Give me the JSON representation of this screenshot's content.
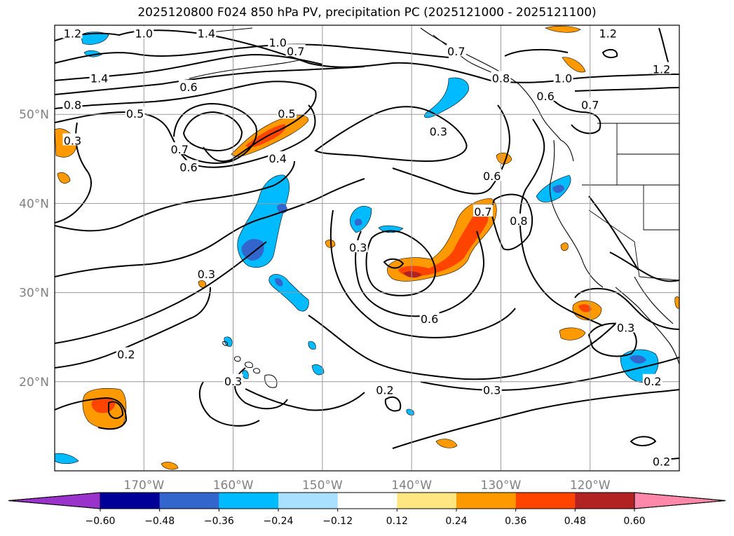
{
  "title": "2025120800 F024 850 hPa PV, precipitation PC (2025121000 - 2025121100)",
  "map": {
    "projection": "PlateCarree",
    "lon_range": [
      -180,
      -110
    ],
    "lat_range": [
      10,
      60
    ],
    "gridlines": true,
    "lon_ticks": [
      {
        "value": -170,
        "label": "170°W"
      },
      {
        "value": -160,
        "label": "160°W"
      },
      {
        "value": -150,
        "label": "150°W"
      },
      {
        "value": -140,
        "label": "140°W"
      },
      {
        "value": -130,
        "label": "130°W"
      },
      {
        "value": -120,
        "label": "120°W"
      }
    ],
    "lat_ticks": [
      {
        "value": 50,
        "label": "50°N"
      },
      {
        "value": 40,
        "label": "40°N"
      },
      {
        "value": 30,
        "label": "30°N"
      },
      {
        "value": 20,
        "label": "20°N"
      }
    ],
    "tick_color": "#808080"
  },
  "contour_labels": [
    {
      "text": "1.2",
      "lon": -178,
      "lat": 59
    },
    {
      "text": "1.0",
      "lon": -170,
      "lat": 59
    },
    {
      "text": "1.4",
      "lon": -163,
      "lat": 59
    },
    {
      "text": "1.0",
      "lon": -155,
      "lat": 58
    },
    {
      "text": "0.7",
      "lon": -153,
      "lat": 57
    },
    {
      "text": "1.4",
      "lon": -175,
      "lat": 54
    },
    {
      "text": "0.6",
      "lon": -165,
      "lat": 53
    },
    {
      "text": "0.8",
      "lon": -178,
      "lat": 51
    },
    {
      "text": "0.5",
      "lon": -171,
      "lat": 50
    },
    {
      "text": "0.5",
      "lon": -154,
      "lat": 50
    },
    {
      "text": "0.3",
      "lon": -178,
      "lat": 47
    },
    {
      "text": "0.7",
      "lon": -166,
      "lat": 46
    },
    {
      "text": "0.6",
      "lon": -165,
      "lat": 44
    },
    {
      "text": "0.4",
      "lon": -155,
      "lat": 45
    },
    {
      "text": "0.7",
      "lon": -135,
      "lat": 57
    },
    {
      "text": "0.3",
      "lon": -137,
      "lat": 48
    },
    {
      "text": "0.8",
      "lon": -130,
      "lat": 54
    },
    {
      "text": "0.6",
      "lon": -125,
      "lat": 52
    },
    {
      "text": "1.2",
      "lon": -118,
      "lat": 59
    },
    {
      "text": "1.0",
      "lon": -123,
      "lat": 54
    },
    {
      "text": "1.2",
      "lon": -112,
      "lat": 55
    },
    {
      "text": "0.7",
      "lon": -120,
      "lat": 51
    },
    {
      "text": "0.6",
      "lon": -131,
      "lat": 43
    },
    {
      "text": "0.7",
      "lon": -132,
      "lat": 39
    },
    {
      "text": "0.8",
      "lon": -128,
      "lat": 38
    },
    {
      "text": "0.3",
      "lon": -146,
      "lat": 35
    },
    {
      "text": "0.3",
      "lon": -163,
      "lat": 32
    },
    {
      "text": "0.6",
      "lon": -138,
      "lat": 27
    },
    {
      "text": "0.3",
      "lon": -116,
      "lat": 26
    },
    {
      "text": "0.2",
      "lon": -172,
      "lat": 23
    },
    {
      "text": "0.3",
      "lon": -160,
      "lat": 20
    },
    {
      "text": "0.2",
      "lon": -143,
      "lat": 19
    },
    {
      "text": "0.3",
      "lon": -131,
      "lat": 19
    },
    {
      "text": "0.2",
      "lon": -113,
      "lat": 20
    },
    {
      "text": "0.2",
      "lon": -112,
      "lat": 11
    }
  ],
  "colorbar": {
    "ticks": [
      "−0.60",
      "−0.48",
      "−0.36",
      "−0.24",
      "−0.12",
      "0.12",
      "0.24",
      "0.36",
      "0.48",
      "0.60"
    ],
    "colors": [
      "#9933cc",
      "#000099",
      "#3366cc",
      "#00bbff",
      "#aae0ff",
      "#ffffff",
      "#ffe680",
      "#ff9900",
      "#ff4400",
      "#b22222",
      "#ff88aa"
    ],
    "extend": "both"
  },
  "precip_colors": {
    "pos_low": "#ff9900",
    "pos_mid": "#ff4400",
    "pos_high": "#b22222",
    "neg_low": "#00bbff",
    "neg_mid": "#3366cc"
  }
}
